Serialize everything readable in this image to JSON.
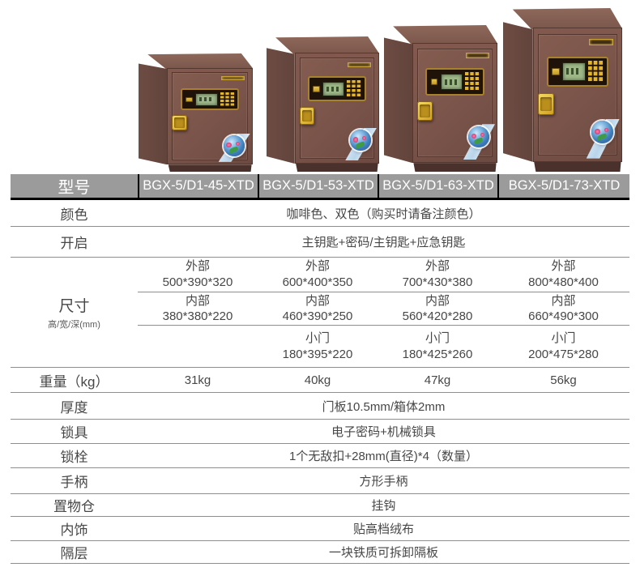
{
  "colors": {
    "header_bg": "#9b9b9b",
    "header_text": "#ffffff",
    "row_line": "#8e8e8e",
    "divider": "#000000",
    "body_text": "#474747",
    "safe_front": "#7c564b",
    "safe_side": "#62443c",
    "safe_top": "#8d685b",
    "safe_plinth": "#4a312b",
    "gold": "#e3b62e",
    "lcd_green": "#9db787",
    "sticker_blue": "#3c7cba"
  },
  "gallery": {
    "safe_count": 4
  },
  "table": {
    "header": {
      "label": "型号",
      "models": [
        "BGX-5/D1-45-XTD",
        "BGX-5/D1-53-XTD",
        "BGX-5/D1-63-XTD",
        "BGX-5/D1-73-XTD"
      ]
    },
    "rows": {
      "color": {
        "label": "颜色",
        "value": "咖啡色、双色（购买时请备注颜色）"
      },
      "opening": {
        "label": "开启",
        "value": "主钥匙+密码/主钥匙+应急钥匙"
      },
      "dimensions": {
        "label": "尺寸",
        "sublabel": "高/宽/深(mm)",
        "sub_rows": [
          {
            "cells": [
              {
                "header": "外部",
                "value": "500*390*320"
              },
              {
                "header": "外部",
                "value": "600*400*350"
              },
              {
                "header": "外部",
                "value": "700*430*380"
              },
              {
                "header": "外部",
                "value": "800*480*400"
              }
            ]
          },
          {
            "cells": [
              {
                "header": "内部",
                "value": "380*380*220"
              },
              {
                "header": "内部",
                "value": "460*390*250"
              },
              {
                "header": "内部",
                "value": "560*420*280"
              },
              {
                "header": "内部",
                "value": "660*490*300"
              }
            ]
          },
          {
            "cells": [
              {
                "header": "",
                "value": ""
              },
              {
                "header": "小门",
                "value": "180*395*220"
              },
              {
                "header": "小门",
                "value": "180*425*260"
              },
              {
                "header": "小门",
                "value": "200*475*280"
              }
            ]
          }
        ]
      },
      "weight": {
        "label": "重量（kg）",
        "values": [
          "31kg",
          "40kg",
          "47kg",
          "56kg"
        ]
      },
      "thickness": {
        "label": "厚度",
        "value": "门板10.5mm/箱体2mm"
      },
      "lock": {
        "label": "锁具",
        "value": "电子密码+机械锁具"
      },
      "bolt": {
        "label": "锁栓",
        "value": "1个无敌扣+28mm(直径)*4（数量）"
      },
      "handle": {
        "label": "手柄",
        "value": "方形手柄"
      },
      "storage": {
        "label": "置物仓",
        "value": "挂钩"
      },
      "interior": {
        "label": "内饰",
        "value": "贴高档绒布"
      },
      "shelf": {
        "label": "隔层",
        "value": "一块铁质可拆卸隔板"
      }
    }
  }
}
